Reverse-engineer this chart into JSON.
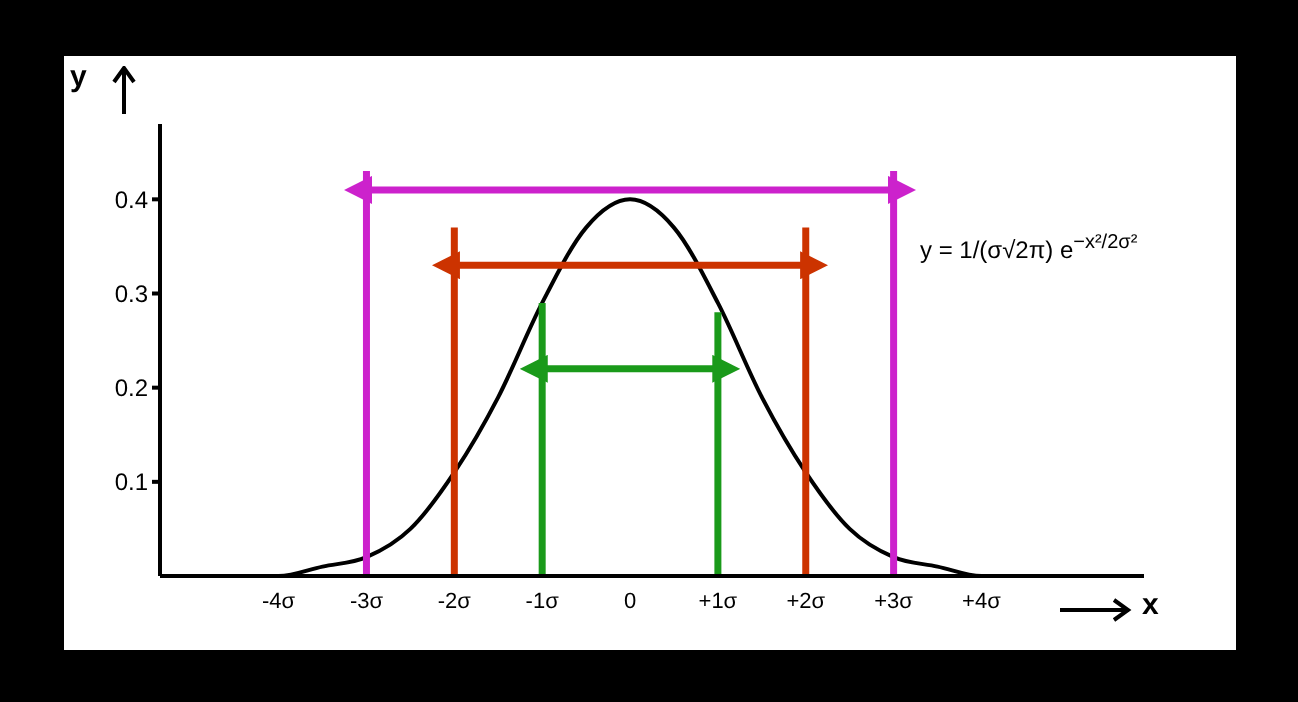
{
  "chart_data": {
    "type": "line",
    "xlabel": "x",
    "ylabel": "y",
    "xlim": [
      -5.35,
      5.85
    ],
    "ylim": [
      0,
      0.48
    ],
    "xticks": [
      {
        "value": -4,
        "label": "-4σ"
      },
      {
        "value": -3,
        "label": "-3σ"
      },
      {
        "value": -2,
        "label": "-2σ"
      },
      {
        "value": -1,
        "label": "-1σ"
      },
      0,
      {
        "value": 1,
        "label": "+1σ"
      },
      {
        "value": 2,
        "label": "+2σ"
      },
      {
        "value": 3,
        "label": "+3σ"
      },
      {
        "value": 4,
        "label": "+4σ"
      }
    ],
    "yticks": [
      0.1,
      0.2,
      0.3,
      0.4
    ],
    "grid": false,
    "legend": false,
    "marker": "none",
    "line_style": "solid",
    "annotations": [
      "y = 1/(σ√2π) e$^{−x²/2σ²}$"
    ],
    "series": [
      {
        "color": "#000000",
        "x": [
          -4.5,
          -4,
          -3.5,
          -3,
          -2.5,
          -2,
          -1.5,
          -1,
          -0.5,
          0,
          0.5,
          1,
          1.5,
          2,
          2.5,
          3,
          3.5,
          4,
          4.5
        ],
        "values": [
          0.0,
          0.0,
          0.01,
          0.02,
          0.05,
          0.11,
          0.19,
          0.29,
          0.37,
          0.4,
          0.37,
          0.29,
          0.19,
          0.11,
          0.05,
          0.02,
          0.01,
          0.0,
          0.0
        ]
      },
      {
        "color": "#cc22cc",
        "x": [
          -3,
          -3
        ],
        "values": [
          0,
          0.43
        ]
      },
      {
        "color": "#cc22cc",
        "x": [
          3,
          3
        ],
        "values": [
          0,
          0.43
        ]
      },
      {
        "color": "#cc3300",
        "x": [
          -2,
          -2
        ],
        "values": [
          0,
          0.37
        ]
      },
      {
        "color": "#cc3300",
        "x": [
          2,
          2
        ],
        "values": [
          0,
          0.37
        ]
      },
      {
        "color": "#1a9a1a",
        "x": [
          -1,
          -1
        ],
        "values": [
          0,
          0.29
        ]
      },
      {
        "color": "#1a9a1a",
        "x": [
          1,
          1
        ],
        "values": [
          0,
          0.28
        ]
      },
      {
        "color": "#cc22cc",
        "x": [
          -3,
          3
        ],
        "values": [
          0.41,
          0.41
        ]
      },
      {
        "color": "#cc3300",
        "x": [
          -2,
          2
        ],
        "values": [
          0.33,
          0.33
        ]
      },
      {
        "color": "#1a9a1a",
        "x": [
          -1,
          1
        ],
        "values": [
          0.22,
          0.22
        ]
      }
    ]
  }
}
